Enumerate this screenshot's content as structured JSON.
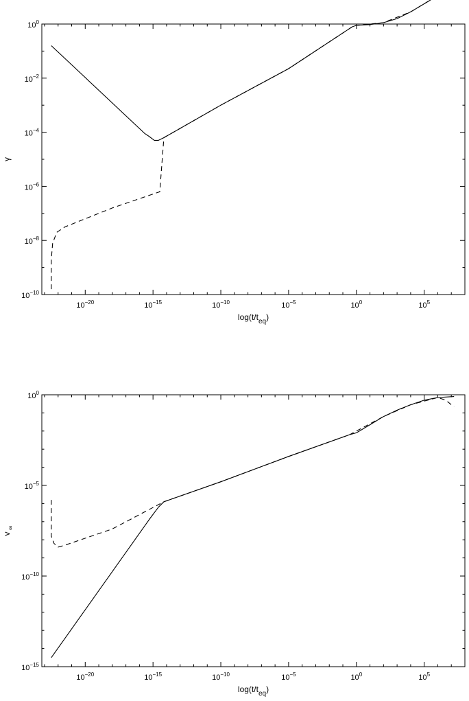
{
  "chart_data": [
    {
      "type": "line",
      "xlabel": "log(t/t_eq)",
      "ylabel": "γ",
      "xscale": "log",
      "yscale": "log",
      "xlim_log10": [
        -23.2,
        8
      ],
      "ylim_log10": [
        -10,
        0
      ],
      "x_major_ticks_log10": [
        -20,
        -15,
        -10,
        -5,
        0,
        5
      ],
      "y_major_ticks_log10": [
        -10,
        -8,
        -6,
        -4,
        -2,
        0
      ],
      "x_tick_labels": [
        "10^-20",
        "10^-15",
        "10^-10",
        "10^-5",
        "10^0",
        "10^5"
      ],
      "y_tick_labels": [
        "10^-10",
        "10^-8",
        "10^-6",
        "10^-4",
        "10^-2",
        "10^0"
      ],
      "grid": false,
      "legend": "none",
      "series": [
        {
          "style": "solid",
          "points_log10": [
            [
              -22.5,
              -0.8
            ],
            [
              -15.6,
              -4.05
            ],
            [
              -15.3,
              -4.15
            ],
            [
              -14.9,
              -4.3
            ],
            [
              -14.6,
              -4.3
            ],
            [
              -14.2,
              -4.2
            ],
            [
              -10,
              -3.0
            ],
            [
              -5,
              -1.65
            ],
            [
              -0.3,
              -0.1
            ],
            [
              0.0,
              -0.05
            ],
            [
              1.0,
              -0.02
            ],
            [
              2.0,
              0.05
            ],
            [
              3.0,
              0.2
            ],
            [
              4.0,
              0.45
            ],
            [
              5.0,
              0.75
            ],
            [
              6.0,
              1.05
            ],
            [
              7.2,
              1.4
            ]
          ]
        },
        {
          "style": "dashed",
          "points_log10": [
            [
              -22.5,
              -9.8
            ],
            [
              -22.5,
              -8.7
            ],
            [
              -22.4,
              -8.1
            ],
            [
              -22.1,
              -7.7
            ],
            [
              -21.5,
              -7.5
            ],
            [
              -18,
              -6.8
            ],
            [
              -14.5,
              -6.2
            ],
            [
              -14.2,
              -4.2
            ],
            [
              -10,
              -3.0
            ],
            [
              -5,
              -1.65
            ],
            [
              -0.3,
              -0.1
            ],
            [
              0.0,
              -0.05
            ],
            [
              2.0,
              0.05
            ],
            [
              4.0,
              0.45
            ],
            [
              6.0,
              1.05
            ],
            [
              6.5,
              1.3
            ],
            [
              7.2,
              1.6
            ]
          ]
        }
      ]
    },
    {
      "type": "line",
      "xlabel": "log(t/t_eq)",
      "ylabel": "v_∞",
      "xscale": "log",
      "yscale": "log",
      "xlim_log10": [
        -23.2,
        8
      ],
      "ylim_log10": [
        -15,
        0
      ],
      "x_major_ticks_log10": [
        -20,
        -15,
        -10,
        -5,
        0,
        5
      ],
      "y_major_ticks_log10": [
        -15,
        -10,
        -5,
        0
      ],
      "x_tick_labels": [
        "10^-20",
        "10^-15",
        "10^-10",
        "10^-5",
        "10^0",
        "10^5"
      ],
      "y_tick_labels": [
        "10^-15",
        "10^-10",
        "10^-5",
        "10^0"
      ],
      "grid": false,
      "legend": "none",
      "series": [
        {
          "style": "solid",
          "points_log10": [
            [
              -22.5,
              -14.5
            ],
            [
              -15.2,
              -6.8
            ],
            [
              -14.6,
              -6.2
            ],
            [
              -14.2,
              -5.9
            ],
            [
              -10,
              -4.8
            ],
            [
              -5,
              -3.4
            ],
            [
              -0.5,
              -2.2
            ],
            [
              0.0,
              -2.1
            ],
            [
              1.0,
              -1.65
            ],
            [
              2.0,
              -1.2
            ],
            [
              3.0,
              -0.85
            ],
            [
              4.0,
              -0.55
            ],
            [
              5.0,
              -0.3
            ],
            [
              6.0,
              -0.15
            ],
            [
              7.2,
              -0.1
            ]
          ]
        },
        {
          "style": "dashed",
          "points_log10": [
            [
              -22.5,
              -5.8
            ],
            [
              -22.5,
              -7.8
            ],
            [
              -22.3,
              -8.2
            ],
            [
              -22.0,
              -8.4
            ],
            [
              -21.5,
              -8.3
            ],
            [
              -18,
              -7.4
            ],
            [
              -14.2,
              -5.9
            ],
            [
              -10,
              -4.8
            ],
            [
              -5,
              -3.4
            ],
            [
              -0.5,
              -2.2
            ],
            [
              2.0,
              -1.2
            ],
            [
              4.0,
              -0.55
            ],
            [
              6.0,
              -0.15
            ],
            [
              6.6,
              -0.3
            ],
            [
              7.0,
              -0.55
            ],
            [
              7.2,
              -0.65
            ]
          ]
        }
      ]
    }
  ]
}
